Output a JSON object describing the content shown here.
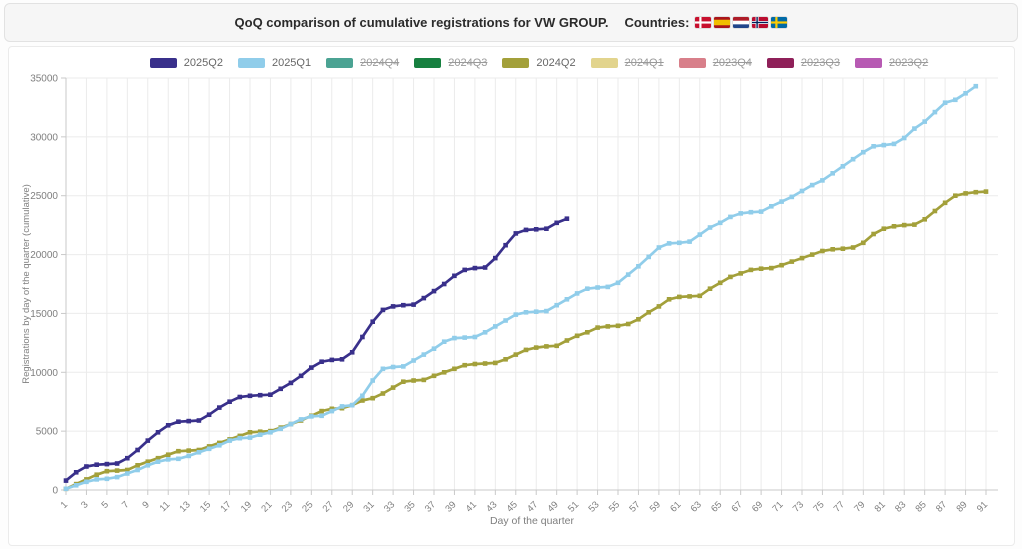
{
  "header": {
    "title": "QoQ comparison of cumulative registrations for VW GROUP.",
    "countries_label": "Countries:",
    "countries": [
      {
        "name": "Denmark",
        "icon": "flag-denmark-icon"
      },
      {
        "name": "Spain",
        "icon": "flag-spain-icon"
      },
      {
        "name": "Netherlands",
        "icon": "flag-netherlands-icon"
      },
      {
        "name": "Norway",
        "icon": "flag-norway-icon"
      },
      {
        "name": "Sweden",
        "icon": "flag-sweden-icon"
      }
    ]
  },
  "chart_data": {
    "type": "line",
    "title": "",
    "xlabel": "Day of the quarter",
    "ylabel": "Registrations by day of the quarter (cumulative)",
    "xlim": [
      1,
      91
    ],
    "ylim": [
      0,
      35000
    ],
    "grid": true,
    "legend_position": "top-center",
    "x_ticks": [
      1,
      3,
      5,
      7,
      9,
      11,
      13,
      15,
      17,
      19,
      21,
      23,
      25,
      27,
      29,
      31,
      33,
      35,
      37,
      39,
      41,
      43,
      45,
      47,
      49,
      51,
      53,
      55,
      57,
      59,
      61,
      63,
      65,
      67,
      69,
      71,
      73,
      75,
      77,
      79,
      81,
      83,
      85,
      87,
      89,
      91
    ],
    "y_ticks": [
      0,
      5000,
      10000,
      15000,
      20000,
      25000,
      30000,
      35000
    ],
    "colors": {
      "grid": "#ebebeb",
      "axis": "#c9c9c9",
      "tick_text": "#7f7f7f"
    },
    "series": [
      {
        "name": "2025Q2",
        "color": "#39308b",
        "active": true,
        "start_day": 1,
        "values": [
          800,
          1500,
          2000,
          2150,
          2200,
          2250,
          2700,
          3400,
          4200,
          4900,
          5500,
          5800,
          5850,
          5900,
          6400,
          7000,
          7500,
          7900,
          8000,
          8050,
          8100,
          8600,
          9100,
          9700,
          10400,
          10900,
          11050,
          11100,
          11700,
          13000,
          14300,
          15300,
          15600,
          15700,
          15750,
          16300,
          16900,
          17500,
          18200,
          18700,
          18850,
          18900,
          19700,
          20800,
          21800,
          22100,
          22150,
          22200,
          22700,
          23050
        ]
      },
      {
        "name": "2025Q1",
        "color": "#90cdea",
        "active": true,
        "start_day": 1,
        "values": [
          100,
          400,
          700,
          900,
          950,
          1100,
          1400,
          1700,
          2100,
          2400,
          2600,
          2650,
          2900,
          3200,
          3500,
          3800,
          4200,
          4400,
          4450,
          4700,
          4900,
          5200,
          5600,
          6000,
          6250,
          6300,
          6700,
          7100,
          7200,
          8000,
          9300,
          10300,
          10450,
          10500,
          11000,
          11500,
          12000,
          12600,
          12900,
          12950,
          13000,
          13400,
          13900,
          14400,
          14900,
          15100,
          15150,
          15200,
          15700,
          16200,
          16700,
          17100,
          17200,
          17250,
          17600,
          18300,
          19000,
          19800,
          20600,
          20950,
          21000,
          21100,
          21700,
          22300,
          22700,
          23200,
          23500,
          23600,
          23650,
          24100,
          24500,
          24900,
          25400,
          25900,
          26300,
          26900,
          27500,
          28100,
          28700,
          29200,
          29300,
          29400,
          29900,
          30700,
          31300,
          32100,
          32900,
          33150,
          33700,
          34300
        ]
      },
      {
        "name": "2024Q4",
        "color": "#4ba393",
        "active": false,
        "start_day": 1,
        "values": []
      },
      {
        "name": "2024Q3",
        "color": "#178040",
        "active": false,
        "start_day": 1,
        "values": []
      },
      {
        "name": "2024Q2",
        "color": "#a3a03a",
        "active": true,
        "start_day": 1,
        "values": [
          100,
          500,
          900,
          1300,
          1600,
          1650,
          1700,
          2100,
          2400,
          2700,
          3000,
          3300,
          3350,
          3400,
          3700,
          4000,
          4300,
          4600,
          4900,
          4950,
          5000,
          5300,
          5600,
          5900,
          6300,
          6700,
          6900,
          6950,
          7200,
          7600,
          7800,
          8200,
          8700,
          9200,
          9300,
          9350,
          9700,
          10000,
          10300,
          10600,
          10700,
          10750,
          10800,
          11100,
          11500,
          11900,
          12100,
          12200,
          12250,
          12700,
          13100,
          13400,
          13800,
          13900,
          13950,
          14100,
          14500,
          15100,
          15600,
          16200,
          16400,
          16450,
          16500,
          17100,
          17600,
          18100,
          18400,
          18700,
          18800,
          18850,
          19100,
          19400,
          19700,
          20000,
          20300,
          20450,
          20500,
          20600,
          21000,
          21750,
          22200,
          22400,
          22500,
          22550,
          23000,
          23700,
          24400,
          25000,
          25200,
          25300,
          25350
        ]
      },
      {
        "name": "2024Q1",
        "color": "#e2d48d",
        "active": false,
        "start_day": 1,
        "values": []
      },
      {
        "name": "2023Q4",
        "color": "#d87f8a",
        "active": false,
        "start_day": 1,
        "values": []
      },
      {
        "name": "2023Q3",
        "color": "#8f2059",
        "active": false,
        "start_day": 1,
        "values": []
      },
      {
        "name": "2023Q2",
        "color": "#b75ab3",
        "active": false,
        "start_day": 1,
        "values": []
      }
    ]
  }
}
